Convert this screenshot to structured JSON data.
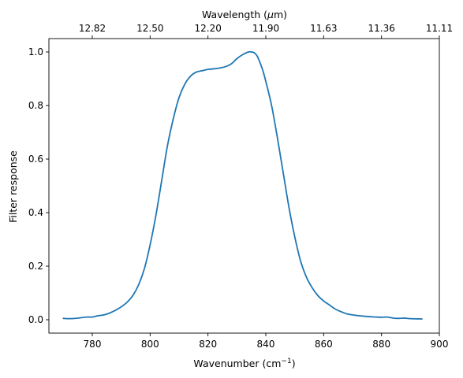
{
  "chart_data": {
    "type": "line",
    "xlabel": "Wavenumber",
    "xlabel_unit": "(cm",
    "xlabel_unit_exp": "−1",
    "xlabel_unit_close": ")",
    "ylabel": "Filter response",
    "top_xlabel": "Wavelength (",
    "top_xlabel_unit": "μ",
    "top_xlabel_unit_rest": "m)",
    "xlim": [
      765,
      900
    ],
    "ylim": [
      -0.05,
      1.05
    ],
    "x_ticks": [
      {
        "value": 780,
        "label": "780"
      },
      {
        "value": 800,
        "label": "800"
      },
      {
        "value": 820,
        "label": "820"
      },
      {
        "value": 840,
        "label": "840"
      },
      {
        "value": 860,
        "label": "860"
      },
      {
        "value": 880,
        "label": "880"
      },
      {
        "value": 900,
        "label": "900"
      }
    ],
    "y_ticks": [
      {
        "value": 0.0,
        "label": "0.0"
      },
      {
        "value": 0.2,
        "label": "0.2"
      },
      {
        "value": 0.4,
        "label": "0.4"
      },
      {
        "value": 0.6,
        "label": "0.6"
      },
      {
        "value": 0.8,
        "label": "0.8"
      },
      {
        "value": 1.0,
        "label": "1.0"
      }
    ],
    "top_ticks": [
      {
        "value": 780,
        "label": "12.82"
      },
      {
        "value": 800,
        "label": "12.50"
      },
      {
        "value": 820,
        "label": "12.20"
      },
      {
        "value": 840,
        "label": "11.90"
      },
      {
        "value": 860,
        "label": "11.63"
      },
      {
        "value": 880,
        "label": "11.36"
      },
      {
        "value": 900,
        "label": "11.11"
      }
    ],
    "grid": false,
    "series": [
      {
        "color": "#1f77b4",
        "x": [
          770,
          772,
          775,
          778,
          780,
          782,
          784,
          786,
          788,
          790,
          792,
          794,
          796,
          798,
          800,
          802,
          804,
          806,
          808,
          810,
          812,
          814,
          816,
          818,
          820,
          822,
          824,
          826,
          828,
          830,
          832,
          834,
          835,
          836,
          837,
          838,
          839,
          840,
          842,
          844,
          846,
          848,
          850,
          852,
          854,
          856,
          858,
          860,
          862,
          864,
          866,
          868,
          870,
          874,
          878,
          880,
          882,
          884,
          886,
          888,
          890,
          894
        ],
        "y": [
          0.005,
          0.004,
          0.006,
          0.01,
          0.01,
          0.015,
          0.018,
          0.025,
          0.035,
          0.048,
          0.065,
          0.09,
          0.13,
          0.19,
          0.28,
          0.39,
          0.52,
          0.65,
          0.75,
          0.83,
          0.88,
          0.91,
          0.925,
          0.93,
          0.935,
          0.937,
          0.94,
          0.945,
          0.955,
          0.975,
          0.99,
          1.0,
          1.0,
          0.997,
          0.985,
          0.96,
          0.93,
          0.89,
          0.8,
          0.68,
          0.55,
          0.42,
          0.31,
          0.22,
          0.16,
          0.12,
          0.09,
          0.07,
          0.055,
          0.04,
          0.03,
          0.022,
          0.018,
          0.013,
          0.01,
          0.009,
          0.01,
          0.006,
          0.005,
          0.006,
          0.004,
          0.003
        ]
      }
    ]
  }
}
